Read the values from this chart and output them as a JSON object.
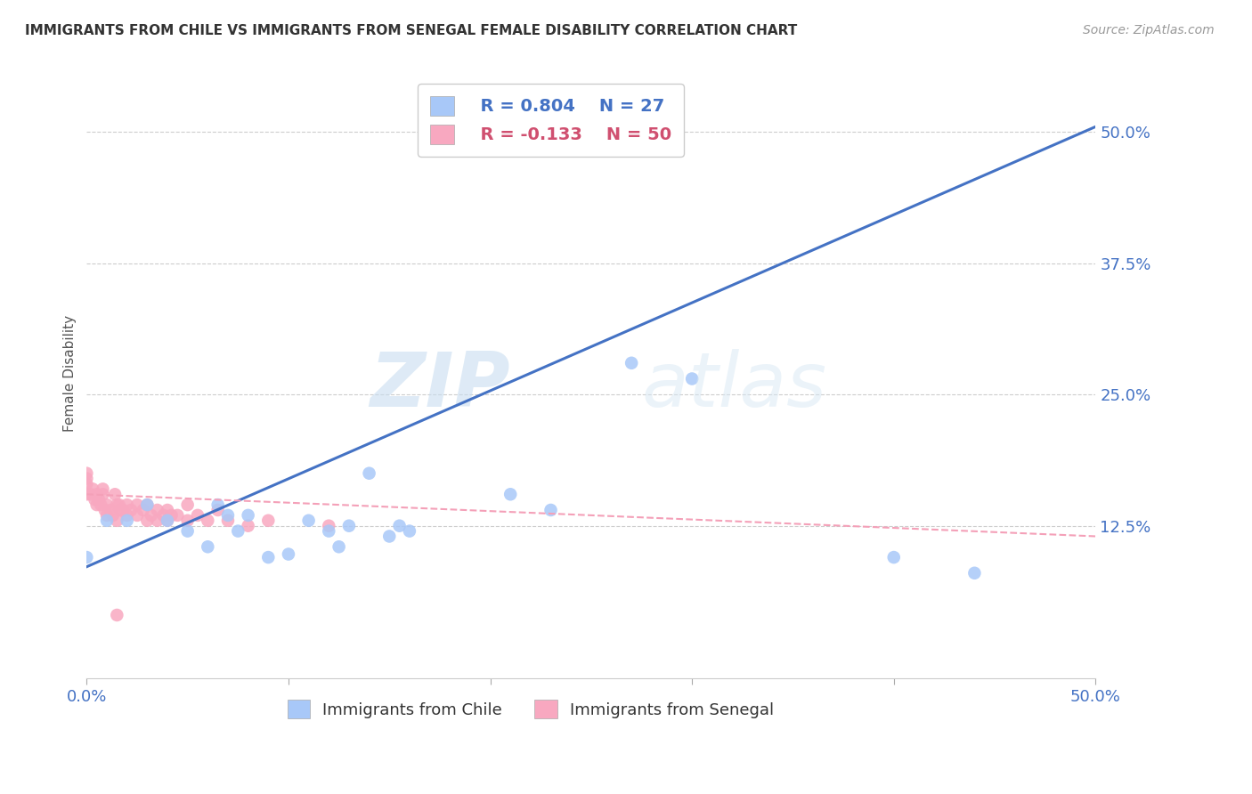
{
  "title": "IMMIGRANTS FROM CHILE VS IMMIGRANTS FROM SENEGAL FEMALE DISABILITY CORRELATION CHART",
  "source_text": "Source: ZipAtlas.com",
  "ylabel": "Female Disability",
  "xlim": [
    0.0,
    0.5
  ],
  "ylim": [
    -0.02,
    0.56
  ],
  "ytick_labels": [
    "12.5%",
    "25.0%",
    "37.5%",
    "50.0%"
  ],
  "ytick_values": [
    0.125,
    0.25,
    0.375,
    0.5
  ],
  "chile_color": "#a8c8f8",
  "senegal_color": "#f8a8c0",
  "chile_line_color": "#4472c4",
  "senegal_line_color": "#f4a0b8",
  "legend_r_chile": "R = 0.804",
  "legend_n_chile": "N = 27",
  "legend_r_senegal": "R = -0.133",
  "legend_n_senegal": "N = 50",
  "watermark_zip": "ZIP",
  "watermark_atlas": "atlas",
  "chile_scatter_x": [
    0.0,
    0.01,
    0.02,
    0.03,
    0.04,
    0.05,
    0.06,
    0.065,
    0.07,
    0.075,
    0.08,
    0.09,
    0.1,
    0.11,
    0.12,
    0.125,
    0.13,
    0.14,
    0.15,
    0.155,
    0.16,
    0.21,
    0.23,
    0.27,
    0.3,
    0.4,
    0.44
  ],
  "chile_scatter_y": [
    0.095,
    0.13,
    0.13,
    0.145,
    0.13,
    0.12,
    0.105,
    0.145,
    0.135,
    0.12,
    0.135,
    0.095,
    0.098,
    0.13,
    0.12,
    0.105,
    0.125,
    0.175,
    0.115,
    0.125,
    0.12,
    0.155,
    0.14,
    0.28,
    0.265,
    0.095,
    0.08
  ],
  "senegal_scatter_x": [
    0.0,
    0.0,
    0.0,
    0.0,
    0.002,
    0.003,
    0.004,
    0.005,
    0.005,
    0.006,
    0.007,
    0.008,
    0.008,
    0.009,
    0.01,
    0.01,
    0.012,
    0.013,
    0.014,
    0.015,
    0.015,
    0.016,
    0.017,
    0.018,
    0.02,
    0.02,
    0.022,
    0.025,
    0.025,
    0.028,
    0.03,
    0.03,
    0.032,
    0.035,
    0.035,
    0.038,
    0.04,
    0.04,
    0.042,
    0.045,
    0.05,
    0.05,
    0.055,
    0.06,
    0.065,
    0.07,
    0.08,
    0.09,
    0.12,
    0.015
  ],
  "senegal_scatter_y": [
    0.155,
    0.165,
    0.17,
    0.175,
    0.155,
    0.16,
    0.15,
    0.145,
    0.155,
    0.15,
    0.145,
    0.155,
    0.16,
    0.14,
    0.135,
    0.145,
    0.14,
    0.135,
    0.155,
    0.13,
    0.145,
    0.145,
    0.14,
    0.14,
    0.135,
    0.145,
    0.14,
    0.135,
    0.145,
    0.14,
    0.13,
    0.145,
    0.135,
    0.14,
    0.13,
    0.135,
    0.13,
    0.14,
    0.135,
    0.135,
    0.13,
    0.145,
    0.135,
    0.13,
    0.14,
    0.13,
    0.125,
    0.13,
    0.125,
    0.04
  ],
  "chile_trend_x": [
    0.0,
    0.5
  ],
  "chile_trend_y": [
    0.086,
    0.505
  ],
  "senegal_trend_x": [
    0.0,
    0.5
  ],
  "senegal_trend_y": [
    0.155,
    0.115
  ],
  "background_color": "#ffffff",
  "grid_color": "#c8c8c8",
  "axis_label_color": "#4472c4",
  "title_color": "#333333"
}
